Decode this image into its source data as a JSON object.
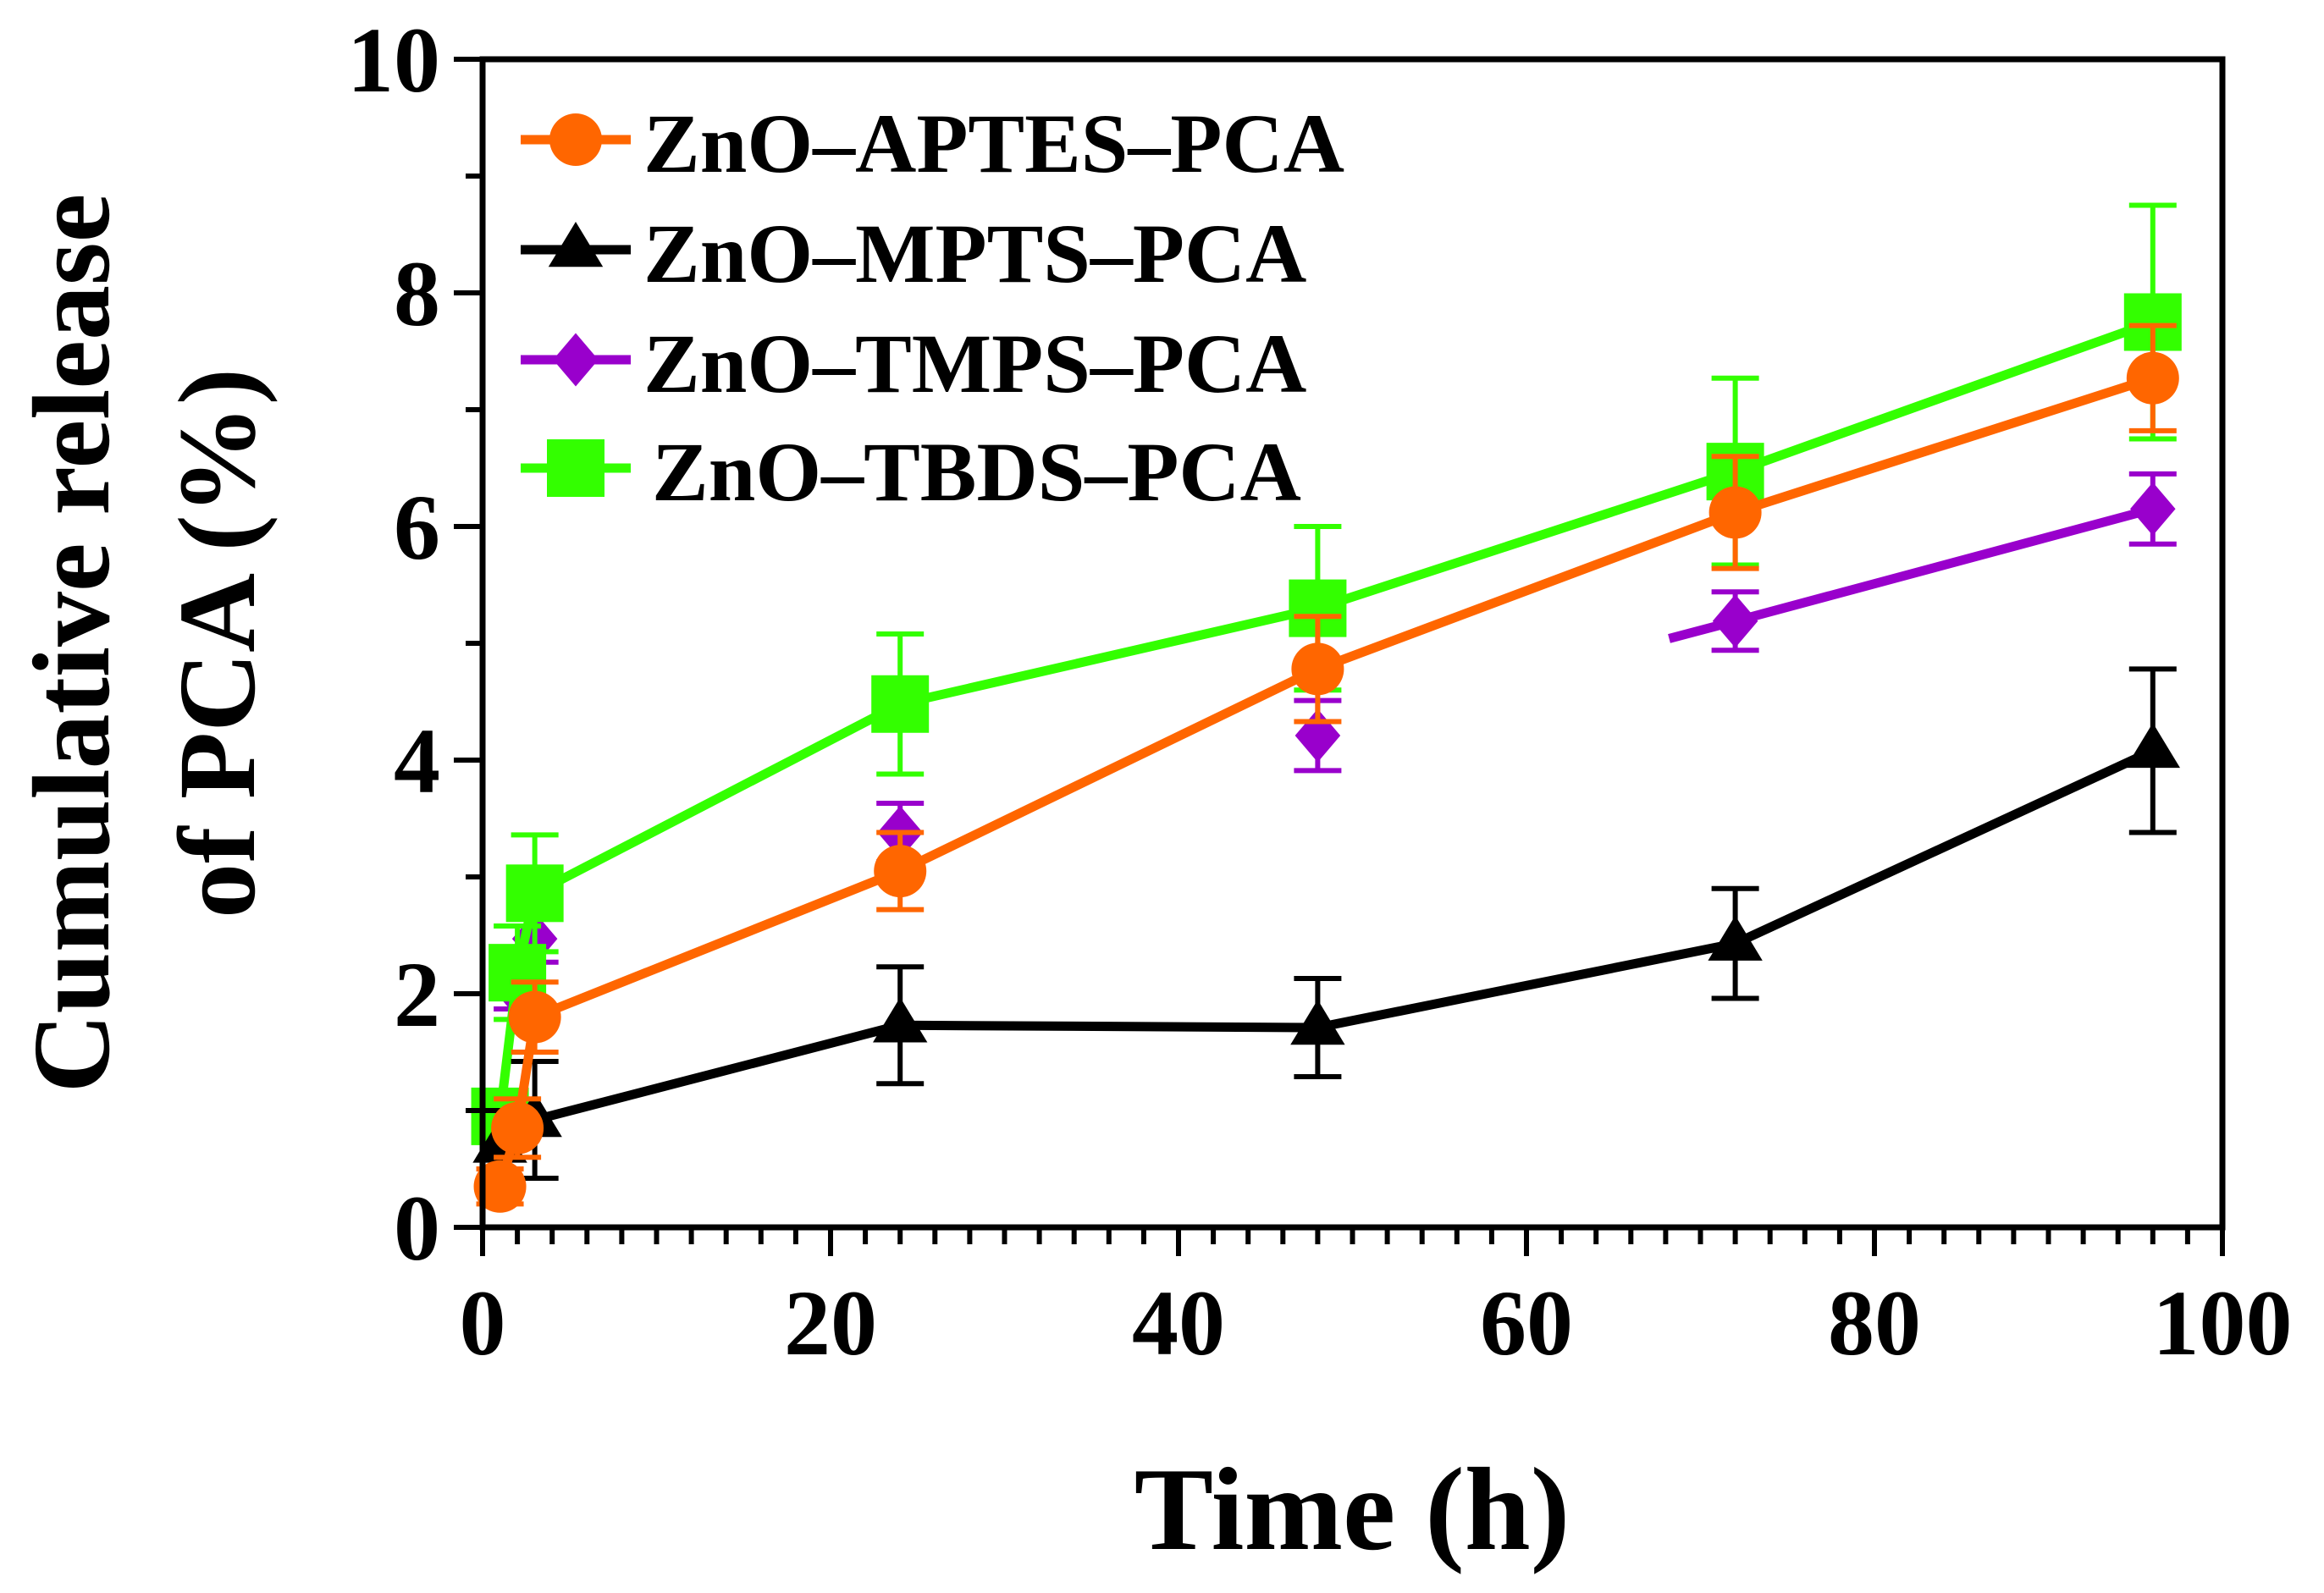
{
  "chart_data": {
    "type": "line",
    "title": "",
    "xlabel": "Time (h)",
    "ylabel_lines": [
      "Cumulative release",
      "of PCA (%)"
    ],
    "xlim": [
      0,
      100
    ],
    "ylim": [
      0,
      10
    ],
    "x_ticks": [
      0,
      20,
      40,
      60,
      80,
      100
    ],
    "y_ticks": [
      0,
      2,
      4,
      6,
      8,
      10
    ],
    "grid": false,
    "legend_position": "top-left",
    "series": [
      {
        "name": "ZnO–APTES–PCA",
        "color": "#FF6600",
        "marker": "circle",
        "x": [
          1,
          2,
          3,
          24,
          48,
          72,
          96
        ],
        "values": [
          0.35,
          0.85,
          1.8,
          3.05,
          4.78,
          6.12,
          7.27
        ],
        "errors": [
          0.15,
          0.25,
          0.3,
          0.33,
          0.45,
          0.48,
          0.45
        ],
        "line_from": 0
      },
      {
        "name": "ZnO–MPTS–PCA",
        "color": "#000000",
        "marker": "triangle",
        "x": [
          1,
          3,
          24,
          48,
          72,
          96
        ],
        "values": [
          0.7,
          0.92,
          1.73,
          1.71,
          2.43,
          4.08
        ],
        "errors": [
          0.3,
          0.5,
          0.5,
          0.42,
          0.47,
          0.7
        ],
        "line_from": 0
      },
      {
        "name": "ZnO–TMPS–PCA",
        "color": "#9900CC",
        "marker": "diamond",
        "x": [
          1,
          2,
          3,
          24,
          48,
          72,
          96
        ],
        "values": [
          0.95,
          2.02,
          2.47,
          3.38,
          4.21,
          5.19,
          6.15
        ],
        "errors": [
          0.12,
          0.15,
          0.2,
          0.25,
          0.3,
          0.25,
          0.3
        ],
        "line_from": 5
      },
      {
        "name": "ZnO–TBDS–PCA",
        "color": "#33FF00",
        "marker": "square",
        "x": [
          1,
          2,
          3,
          24,
          48,
          72,
          96
        ],
        "values": [
          0.95,
          2.18,
          2.86,
          4.48,
          5.3,
          6.47,
          7.75
        ],
        "errors": [
          0.12,
          0.4,
          0.5,
          0.6,
          0.7,
          0.8,
          1.0
        ],
        "line_from": 0
      }
    ]
  }
}
